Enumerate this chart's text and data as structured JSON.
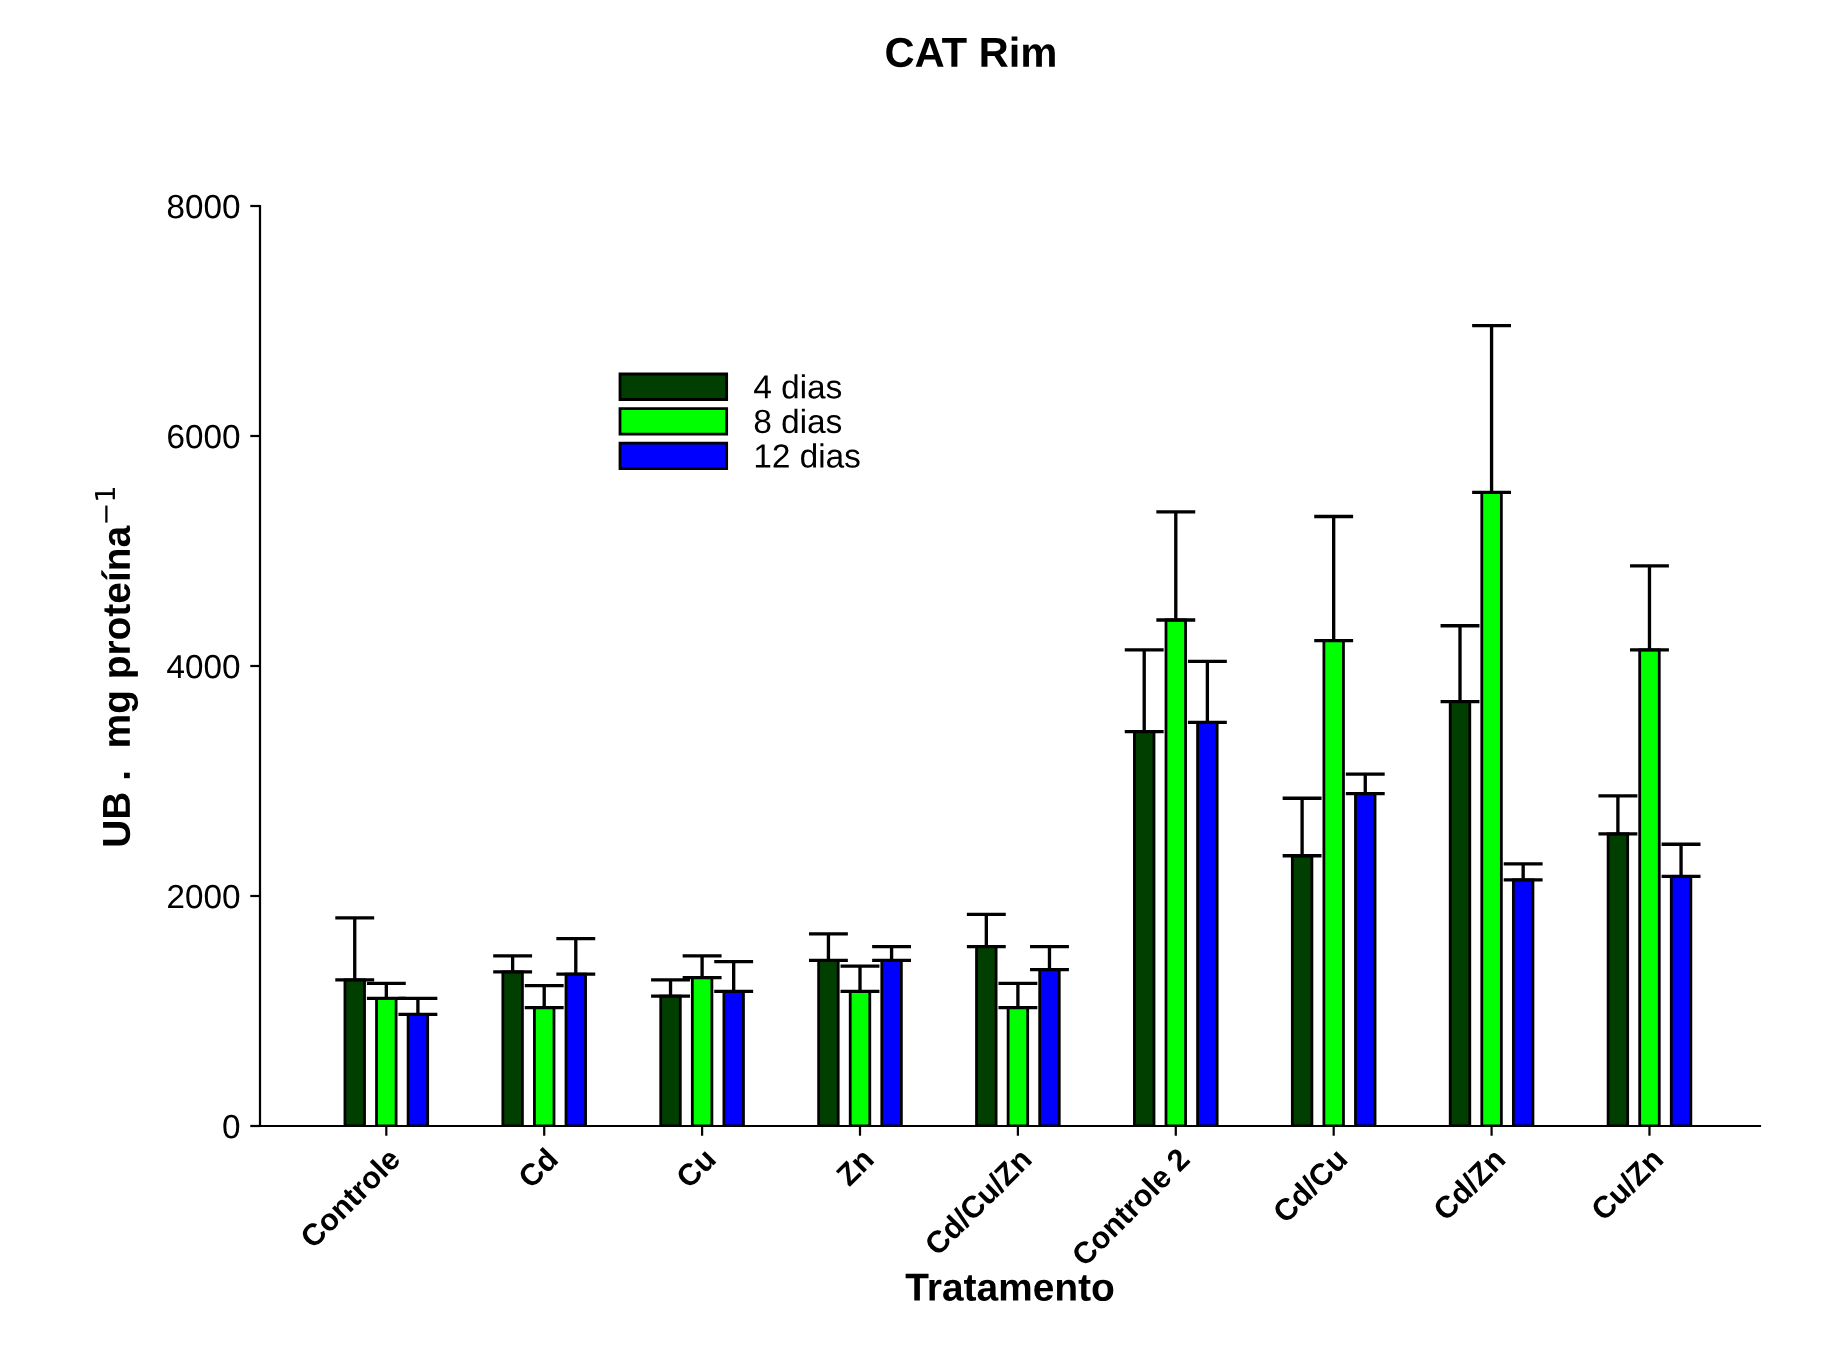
{
  "chart_data": {
    "type": "bar",
    "title": "CAT Rim",
    "xlabel": "Tratamento",
    "ylabel": "UB .  mg proteína$^{−1}$",
    "categories": [
      "Controle",
      "Cd",
      "Cu",
      "Zn",
      "Cd/Cu/Zn",
      "Controle 2",
      "Cd/Cu",
      "Cd/Zn",
      "Cu/Zn"
    ],
    "series": [
      {
        "name": "4 dias",
        "color": "#003f00",
        "values": [
          1270,
          1340,
          1130,
          1440,
          1560,
          3430,
          2350,
          3690,
          2540
        ],
        "errors": [
          [
            1270,
            1810
          ],
          [
            1340,
            1480
          ],
          [
            1130,
            1270
          ],
          [
            1440,
            1670
          ],
          [
            1560,
            1840
          ],
          [
            3430,
            4140
          ],
          [
            2350,
            2850
          ],
          [
            3690,
            4350
          ],
          [
            2540,
            2870
          ]
        ]
      },
      {
        "name": "8 dias",
        "color": "#00ff00",
        "values": [
          1110,
          1030,
          1290,
          1170,
          1030,
          4400,
          4220,
          5510,
          4140
        ],
        "errors": [
          [
            1110,
            1240
          ],
          [
            1030,
            1220
          ],
          [
            1290,
            1480
          ],
          [
            1170,
            1390
          ],
          [
            1030,
            1240
          ],
          [
            4400,
            5340
          ],
          [
            4220,
            5300
          ],
          [
            5510,
            6960
          ],
          [
            4140,
            4870
          ]
        ]
      },
      {
        "name": "12 dias",
        "color": "#0000ff",
        "values": [
          970,
          1320,
          1170,
          1440,
          1360,
          3510,
          2890,
          2140,
          2170
        ],
        "errors": [
          [
            970,
            1110
          ],
          [
            1320,
            1630
          ],
          [
            1170,
            1430
          ],
          [
            1440,
            1560
          ],
          [
            1360,
            1560
          ],
          [
            3510,
            4040
          ],
          [
            2890,
            3060
          ],
          [
            2140,
            2280
          ],
          [
            2170,
            2450
          ]
        ]
      }
    ],
    "ylim": [
      0,
      8000
    ],
    "yticks": [
      0,
      2000,
      4000,
      6000,
      8000
    ],
    "grid": false,
    "legend": "top left"
  }
}
